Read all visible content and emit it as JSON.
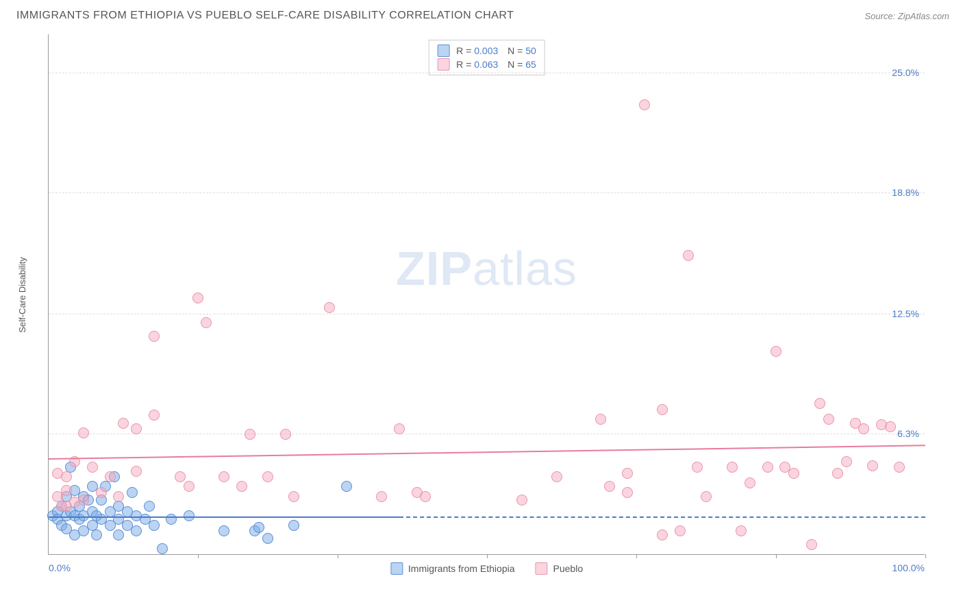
{
  "header": {
    "title": "IMMIGRANTS FROM ETHIOPIA VS PUEBLO SELF-CARE DISABILITY CORRELATION CHART",
    "source": "Source: ZipAtlas.com"
  },
  "watermark": {
    "bold": "ZIP",
    "light": "atlas"
  },
  "chart": {
    "type": "scatter",
    "ylabel": "Self-Care Disability",
    "xlim": [
      0,
      100
    ],
    "ylim": [
      0,
      27
    ],
    "yticks": [
      {
        "value": 6.3,
        "label": "6.3%"
      },
      {
        "value": 12.5,
        "label": "12.5%"
      },
      {
        "value": 18.8,
        "label": "18.8%"
      },
      {
        "value": 25.0,
        "label": "25.0%"
      }
    ],
    "xtick_marks": [
      17,
      33,
      50,
      67,
      83,
      100
    ],
    "xlabels": {
      "min": "0.0%",
      "max": "100.0%"
    },
    "background_color": "#ffffff",
    "grid_color": "#dddddd",
    "text_color": "#555555",
    "value_color": "#4a7bc8",
    "marker_radius": 8,
    "series": [
      {
        "name": "Immigrants from Ethiopia",
        "color_fill": "rgba(120,170,230,0.5)",
        "color_border": "#5b8fd6",
        "R": "0.003",
        "N": "50",
        "trend": {
          "y_at_x0": 2.0,
          "y_at_x100": 2.0,
          "x_solid_end": 40,
          "color": "#4a7bc8"
        },
        "points": [
          [
            0.5,
            2.0
          ],
          [
            1,
            2.2
          ],
          [
            1,
            1.8
          ],
          [
            1.5,
            2.5
          ],
          [
            1.5,
            1.5
          ],
          [
            2,
            3.0
          ],
          [
            2,
            2.0
          ],
          [
            2,
            1.3
          ],
          [
            2.5,
            2.2
          ],
          [
            2.5,
            4.5
          ],
          [
            3,
            1.0
          ],
          [
            3,
            2.0
          ],
          [
            3,
            3.3
          ],
          [
            3.5,
            1.8
          ],
          [
            3.5,
            2.5
          ],
          [
            4,
            1.2
          ],
          [
            4,
            2.0
          ],
          [
            4,
            3.0
          ],
          [
            4.5,
            2.8
          ],
          [
            5,
            1.5
          ],
          [
            5,
            2.2
          ],
          [
            5,
            3.5
          ],
          [
            5.5,
            1.0
          ],
          [
            5.5,
            2.0
          ],
          [
            6,
            1.8
          ],
          [
            6,
            2.8
          ],
          [
            6.5,
            3.5
          ],
          [
            7,
            1.5
          ],
          [
            7,
            2.2
          ],
          [
            7.5,
            4.0
          ],
          [
            8,
            1.0
          ],
          [
            8,
            1.8
          ],
          [
            8,
            2.5
          ],
          [
            9,
            1.5
          ],
          [
            9,
            2.2
          ],
          [
            9.5,
            3.2
          ],
          [
            10,
            1.2
          ],
          [
            10,
            2
          ],
          [
            11,
            1.8
          ],
          [
            11.5,
            2.5
          ],
          [
            12,
            1.5
          ],
          [
            13,
            0.3
          ],
          [
            14,
            1.8
          ],
          [
            16,
            2.0
          ],
          [
            20,
            1.2
          ],
          [
            23.5,
            1.2
          ],
          [
            24,
            1.4
          ],
          [
            28,
            1.5
          ],
          [
            25,
            0.8
          ],
          [
            34,
            3.5
          ]
        ]
      },
      {
        "name": "Pueblo",
        "color_fill": "rgba(245,170,190,0.5)",
        "color_border": "#e896ac",
        "R": "0.063",
        "N": "65",
        "trend": {
          "y_at_x0": 5.0,
          "y_at_x100": 5.7,
          "x_solid_end": 100,
          "color": "#e87b9a"
        },
        "points": [
          [
            1,
            3
          ],
          [
            1,
            4.2
          ],
          [
            1.5,
            2.5
          ],
          [
            2,
            3.3
          ],
          [
            2,
            4
          ],
          [
            2,
            2.5
          ],
          [
            3,
            4.8
          ],
          [
            3,
            2.7
          ],
          [
            4,
            6.3
          ],
          [
            4,
            2.8
          ],
          [
            5,
            4.5
          ],
          [
            6,
            3.2
          ],
          [
            7,
            4
          ],
          [
            8,
            3
          ],
          [
            8.5,
            6.8
          ],
          [
            10,
            6.5
          ],
          [
            10,
            4.3
          ],
          [
            12,
            7.2
          ],
          [
            12,
            11.3
          ],
          [
            15,
            4
          ],
          [
            16,
            3.5
          ],
          [
            17,
            13.3
          ],
          [
            18,
            12
          ],
          [
            20,
            4
          ],
          [
            22,
            3.5
          ],
          [
            23,
            6.2
          ],
          [
            25,
            4
          ],
          [
            27,
            6.2
          ],
          [
            28,
            3.0
          ],
          [
            32,
            12.8
          ],
          [
            38,
            3
          ],
          [
            40,
            6.5
          ],
          [
            42,
            3.2
          ],
          [
            43,
            3.0
          ],
          [
            54,
            2.8
          ],
          [
            58,
            4
          ],
          [
            63,
            7
          ],
          [
            64,
            3.5
          ],
          [
            66,
            3.2
          ],
          [
            66,
            4.2
          ],
          [
            68,
            23.3
          ],
          [
            70,
            7.5
          ],
          [
            70,
            1.0
          ],
          [
            72,
            1.2
          ],
          [
            73,
            15.5
          ],
          [
            74,
            4.5
          ],
          [
            75,
            3.0
          ],
          [
            78,
            4.5
          ],
          [
            79,
            1.2
          ],
          [
            80,
            3.7
          ],
          [
            82,
            4.5
          ],
          [
            83,
            10.5
          ],
          [
            84,
            4.5
          ],
          [
            85,
            4.2
          ],
          [
            87,
            0.5
          ],
          [
            88,
            7.8
          ],
          [
            89,
            7.0
          ],
          [
            90,
            4.2
          ],
          [
            91,
            4.8
          ],
          [
            92,
            6.8
          ],
          [
            93,
            6.5
          ],
          [
            94,
            4.6
          ],
          [
            95,
            6.7
          ],
          [
            97,
            4.5
          ],
          [
            96,
            6.6
          ]
        ]
      }
    ],
    "bottom_legend": [
      {
        "swatch": "blue",
        "label": "Immigrants from Ethiopia"
      },
      {
        "swatch": "pink",
        "label": "Pueblo"
      }
    ]
  }
}
